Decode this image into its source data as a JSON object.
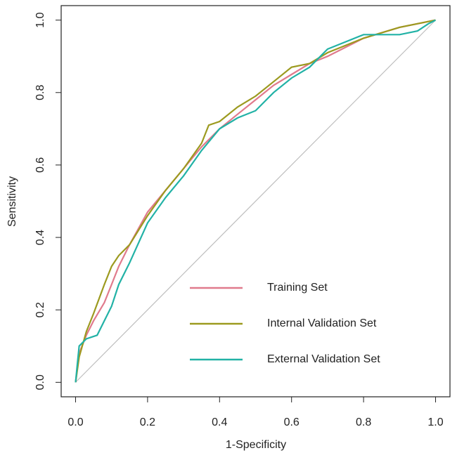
{
  "chart_data": {
    "type": "line",
    "xlabel": "1-Specificity",
    "ylabel": "Sensitivity",
    "xlim": [
      -0.04,
      1.04
    ],
    "ylim": [
      -0.04,
      1.04
    ],
    "xticks": [
      {
        "value": 0,
        "label": "0.0"
      },
      0.2,
      0.4,
      0.6,
      0.8,
      {
        "value": 1,
        "label": "1.0"
      }
    ],
    "yticks": [
      {
        "value": 0,
        "label": "0.0"
      },
      0.2,
      0.4,
      0.6,
      0.8,
      {
        "value": 1,
        "label": "1.0"
      }
    ],
    "reference_line": {
      "x": [
        0,
        1
      ],
      "y": [
        0,
        1
      ],
      "color": "#bebebe"
    },
    "legend": "center-right",
    "series": [
      {
        "name": "Training Set",
        "color": "#e07a8c",
        "x": [
          0,
          0.01,
          0.03,
          0.05,
          0.08,
          0.1,
          0.12,
          0.15,
          0.2,
          0.25,
          0.3,
          0.35,
          0.4,
          0.45,
          0.5,
          0.55,
          0.6,
          0.65,
          0.7,
          0.8,
          0.9,
          1
        ],
        "values": [
          0,
          0.08,
          0.13,
          0.17,
          0.22,
          0.27,
          0.32,
          0.38,
          0.47,
          0.53,
          0.59,
          0.65,
          0.7,
          0.74,
          0.78,
          0.82,
          0.85,
          0.88,
          0.9,
          0.95,
          0.98,
          1
        ]
      },
      {
        "name": "Internal Validation Set",
        "color": "#9c9a1f",
        "x": [
          0,
          0.01,
          0.03,
          0.05,
          0.08,
          0.1,
          0.12,
          0.15,
          0.2,
          0.25,
          0.3,
          0.35,
          0.37,
          0.4,
          0.45,
          0.5,
          0.55,
          0.6,
          0.65,
          0.7,
          0.8,
          0.9,
          1
        ],
        "values": [
          0,
          0.07,
          0.14,
          0.19,
          0.27,
          0.32,
          0.35,
          0.38,
          0.46,
          0.53,
          0.59,
          0.66,
          0.71,
          0.72,
          0.76,
          0.79,
          0.83,
          0.87,
          0.88,
          0.91,
          0.95,
          0.98,
          1
        ]
      },
      {
        "name": "External Validation Set",
        "color": "#22b2a6",
        "x": [
          0,
          0.005,
          0.01,
          0.03,
          0.06,
          0.08,
          0.1,
          0.12,
          0.15,
          0.2,
          0.25,
          0.3,
          0.35,
          0.4,
          0.45,
          0.5,
          0.55,
          0.6,
          0.65,
          0.7,
          0.8,
          0.9,
          0.95,
          0.98,
          1
        ],
        "values": [
          0,
          0.05,
          0.1,
          0.12,
          0.13,
          0.17,
          0.21,
          0.27,
          0.33,
          0.44,
          0.51,
          0.57,
          0.64,
          0.7,
          0.73,
          0.75,
          0.8,
          0.84,
          0.87,
          0.92,
          0.96,
          0.96,
          0.97,
          0.99,
          1
        ]
      }
    ]
  }
}
